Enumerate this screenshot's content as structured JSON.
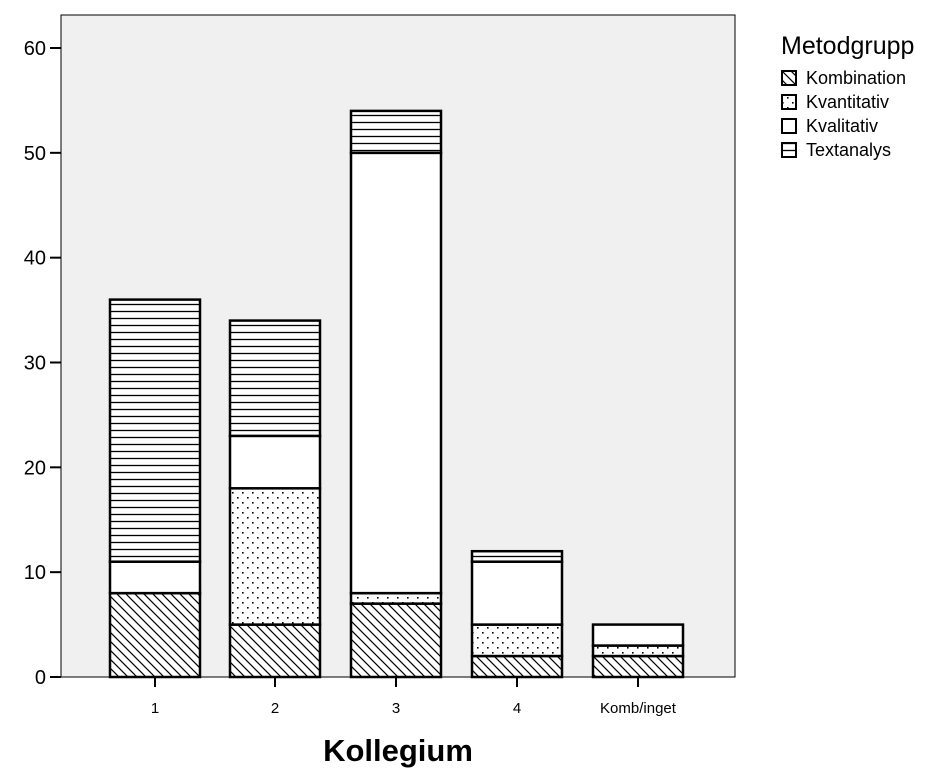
{
  "chart_data": {
    "type": "bar",
    "stacked": true,
    "categories": [
      "1",
      "2",
      "3",
      "4",
      "Komb/inget"
    ],
    "series": [
      {
        "name": "Kombination",
        "pattern": "diagonal",
        "values": [
          8,
          5,
          7,
          2,
          2
        ]
      },
      {
        "name": "Kvantitativ",
        "pattern": "dots",
        "values": [
          0,
          13,
          1,
          3,
          1
        ]
      },
      {
        "name": "Kvalitativ",
        "pattern": "plain",
        "values": [
          3,
          5,
          42,
          6,
          2
        ]
      },
      {
        "name": "Textanalys",
        "pattern": "horizontal",
        "values": [
          25,
          11,
          4,
          1,
          0
        ]
      }
    ],
    "xlabel": "Kollegium",
    "ylabel": "",
    "ylim": [
      0,
      60
    ],
    "yticks": [
      0,
      10,
      20,
      30,
      40,
      50,
      60
    ],
    "legend_title": "Metodgrupp",
    "legend_position": "top-right",
    "grid": false,
    "colors": {
      "plot_background": "#f0f0f0",
      "bar_fill": "#ffffff",
      "stroke": "#000000"
    }
  }
}
